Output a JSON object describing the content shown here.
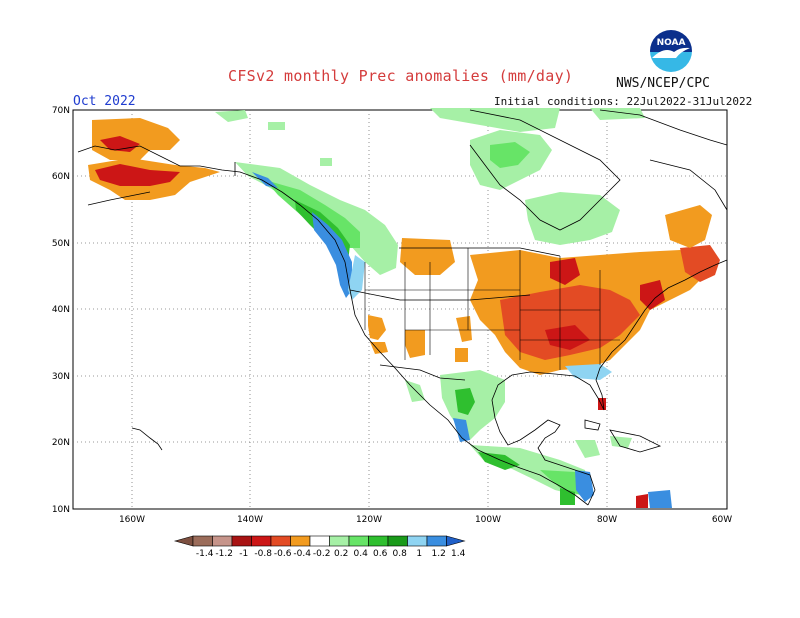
{
  "header": {
    "title": "CFSv2 monthly Prec anomalies (mm/day)",
    "agency": "NWS/NCEP/CPC",
    "month": "Oct 2022",
    "initial_conditions": "Initial conditions: 22Jul2022-31Jul2022",
    "logo_text": "NOAA"
  },
  "map": {
    "lat_labels": [
      "70N",
      "60N",
      "50N",
      "40N",
      "30N",
      "20N",
      "10N"
    ],
    "lon_labels": [
      "160W",
      "140W",
      "120W",
      "100W",
      "80W",
      "60W"
    ]
  },
  "legend": {
    "labels": [
      "-1.4",
      "-1.2",
      "-1",
      "-0.8",
      "-0.6",
      "-0.4",
      "-0.2",
      "0.2",
      "0.4",
      "0.6",
      "0.8",
      "1",
      "1.2",
      "1.4"
    ],
    "colors": [
      "#7d5040",
      "#9b6c5a",
      "#c6948a",
      "#a81313",
      "#cc1616",
      "#e34b24",
      "#f29b1f",
      "#ffffff",
      "#a6f0a6",
      "#67e467",
      "#2fbf2f",
      "#1a9a1a",
      "#8fd4f2",
      "#3a8ee0",
      "#2060c8"
    ]
  }
}
